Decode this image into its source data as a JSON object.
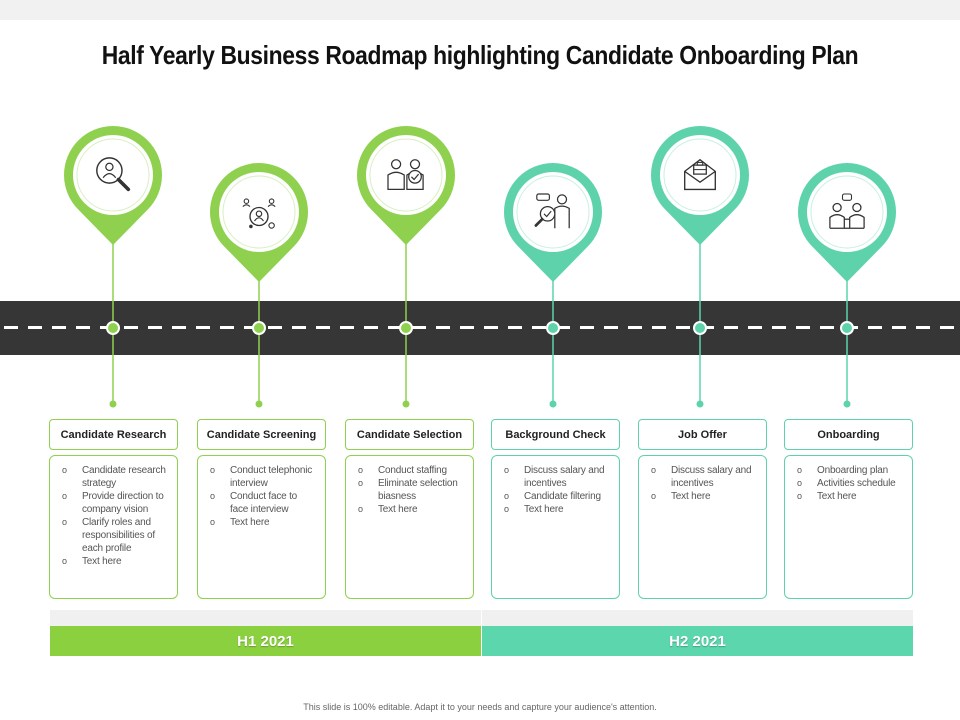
{
  "title": "Half Yearly Business Roadmap highlighting Candidate Onboarding Plan",
  "colors": {
    "green": "#8fd14f",
    "green_bar": "#8bd13f",
    "teal": "#5ed3ab",
    "teal_bar": "#5cd6ad",
    "road": "#363636",
    "dashes": "#ffffff"
  },
  "stages": [
    {
      "title": "Candidate Research",
      "phase": "h1",
      "icon": "magnifier-person-icon",
      "bullets": [
        "Candidate research strategy",
        "Provide direction to company vision",
        "Clarify roles and responsibilities of each profile",
        "Text here"
      ]
    },
    {
      "title": "Candidate Screening",
      "phase": "h1",
      "icon": "candidate-target-icon",
      "bullets": [
        "Conduct telephonic interview",
        "Conduct face to face interview",
        "Text here"
      ]
    },
    {
      "title": "Candidate Selection",
      "phase": "h1",
      "icon": "two-people-check-icon",
      "bullets": [
        "Conduct staffing",
        "Eliminate selection biasness",
        "Text here"
      ]
    },
    {
      "title": "Background Check",
      "phase": "h2",
      "icon": "person-magnifier-check-icon",
      "bullets": [
        "Discuss salary and incentives",
        "Candidate filtering",
        "Text here"
      ]
    },
    {
      "title": "Job Offer",
      "phase": "h2",
      "icon": "envelope-briefcase-icon",
      "bullets": [
        "Discuss salary and incentives",
        "Text here"
      ]
    },
    {
      "title": "Onboarding",
      "phase": "h2",
      "icon": "people-chat-icon",
      "bullets": [
        "Onboarding plan",
        "Activities schedule",
        "Text here"
      ]
    }
  ],
  "halves": [
    {
      "label": "H1 2021"
    },
    {
      "label": "H2 2021"
    }
  ],
  "footer": "This slide is 100% editable. Adapt it to your needs and capture your audience's attention."
}
